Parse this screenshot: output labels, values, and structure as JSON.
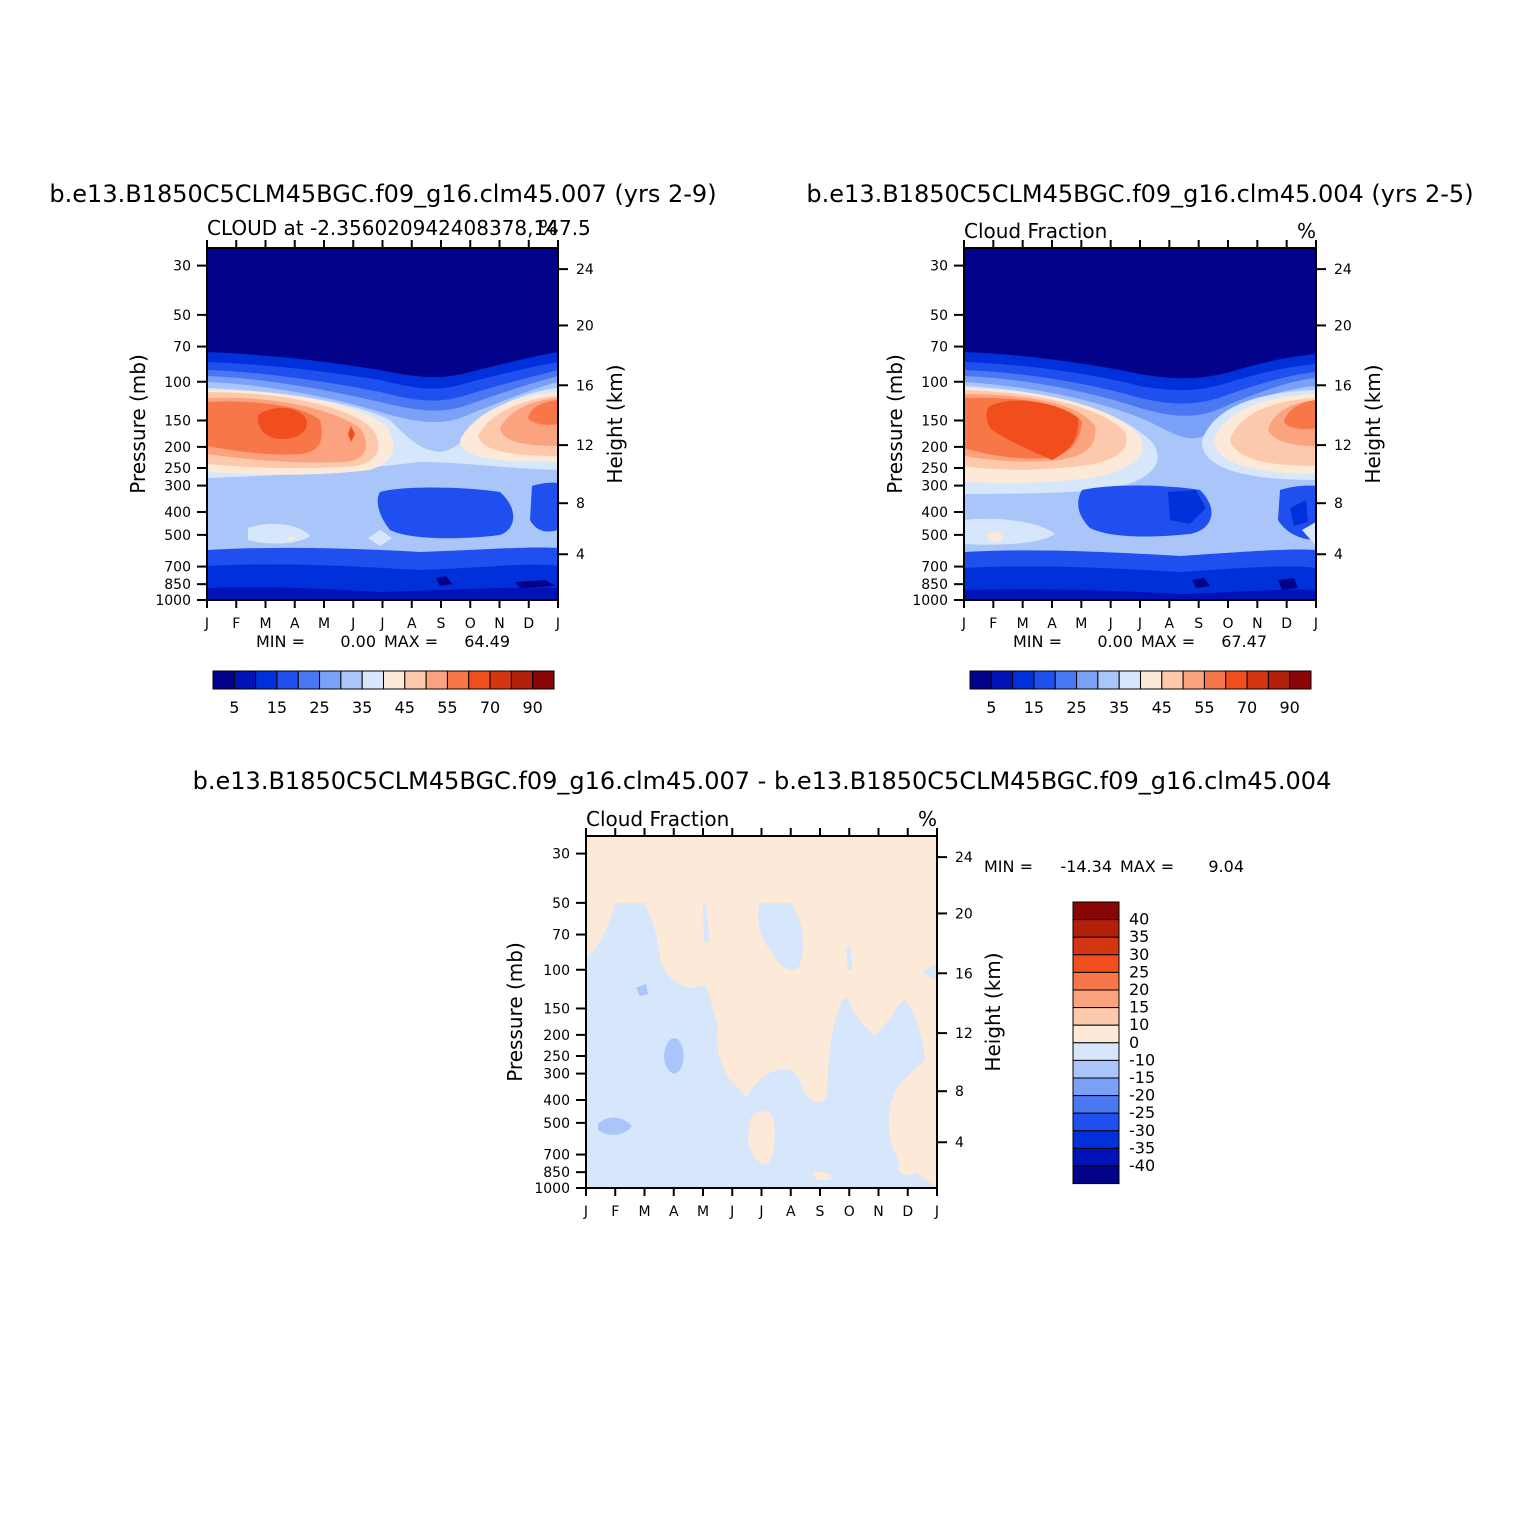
{
  "chart_data": [
    {
      "type": "heatmap",
      "title": "b.e13.B1850C5CLM45BGC.f09_g16.clm45.007 (yrs 2-9)",
      "subtitle_left": "CLOUD at -2.356020942408378,147.5",
      "subtitle_right": "%",
      "xlabel": "",
      "ylabel": "Pressure (mb)",
      "ylabel_right": "Height (km)",
      "x_ticks": [
        "J",
        "F",
        "M",
        "A",
        "M",
        "J",
        "J",
        "A",
        "S",
        "O",
        "N",
        "D",
        "J"
      ],
      "y_ticks": [
        "30",
        "50",
        "70",
        "100",
        "150",
        "200",
        "250",
        "300",
        "400",
        "500",
        "700",
        "850",
        "1000"
      ],
      "y_ticks_right": [
        "24",
        "20",
        "16",
        "12",
        "8",
        "4"
      ],
      "stats": {
        "min_label": "MIN =",
        "min": "0.00",
        "max_label": "MAX =",
        "max": "64.49"
      },
      "colorbar_labels": [
        "5",
        "15",
        "25",
        "35",
        "45",
        "55",
        "70",
        "90"
      ],
      "profile_notes": {
        "upper_tropo_peak_months": [
          "M",
          "A",
          "D"
        ],
        "peak_max": 64.49
      }
    },
    {
      "type": "heatmap",
      "title": "b.e13.B1850C5CLM45BGC.f09_g16.clm45.004 (yrs 2-5)",
      "subtitle_left": "Cloud Fraction",
      "subtitle_right": "%",
      "ylabel": "Pressure (mb)",
      "ylabel_right": "Height (km)",
      "x_ticks": [
        "J",
        "F",
        "M",
        "A",
        "M",
        "J",
        "J",
        "A",
        "S",
        "O",
        "N",
        "D",
        "J"
      ],
      "y_ticks": [
        "30",
        "50",
        "70",
        "100",
        "150",
        "200",
        "250",
        "300",
        "400",
        "500",
        "700",
        "850",
        "1000"
      ],
      "y_ticks_right": [
        "24",
        "20",
        "16",
        "12",
        "8",
        "4"
      ],
      "stats": {
        "min_label": "MIN =",
        "min": "0.00",
        "max_label": "MAX =",
        "max": "67.47"
      },
      "colorbar_labels": [
        "5",
        "15",
        "25",
        "35",
        "45",
        "55",
        "70",
        "90"
      ]
    },
    {
      "type": "heatmap",
      "title": "b.e13.B1850C5CLM45BGC.f09_g16.clm45.007 - b.e13.B1850C5CLM45BGC.f09_g16.clm45.004",
      "subtitle_left": "Cloud Fraction",
      "subtitle_right": "%",
      "ylabel": "Pressure (mb)",
      "ylabel_right": "Height (km)",
      "x_ticks": [
        "J",
        "F",
        "M",
        "A",
        "M",
        "J",
        "J",
        "A",
        "S",
        "O",
        "N",
        "D",
        "J"
      ],
      "y_ticks": [
        "30",
        "50",
        "70",
        "100",
        "150",
        "200",
        "250",
        "300",
        "400",
        "500",
        "700",
        "850",
        "1000"
      ],
      "y_ticks_right": [
        "24",
        "20",
        "16",
        "12",
        "8",
        "4"
      ],
      "stats": {
        "min_label": "MIN =",
        "min": "-14.34",
        "max_label": "MAX =",
        "max": "9.04"
      },
      "colorbar_labels": [
        "40",
        "35",
        "30",
        "25",
        "20",
        "15",
        "10",
        "0",
        "-10",
        "-15",
        "-20",
        "-25",
        "-30",
        "-35",
        "-40"
      ]
    }
  ],
  "colors": {
    "seq": [
      "#02028a",
      "#0012b8",
      "#0030da",
      "#1f50ef",
      "#4a78f3",
      "#7aa0f7",
      "#a9c5f9",
      "#d6e6fb",
      "#fde9d8",
      "#fdc9ad",
      "#fba27f",
      "#f87749",
      "#f04f1d",
      "#d33610",
      "#b3200a",
      "#8a0606"
    ],
    "div": [
      "#8a0606",
      "#b3200a",
      "#d33610",
      "#f04f1d",
      "#f87749",
      "#fba27f",
      "#fdc9ad",
      "#fde9d8",
      "#d6e6fb",
      "#a9c5f9",
      "#7aa0f7",
      "#4a78f3",
      "#1f50ef",
      "#0030da",
      "#0012b8",
      "#02028a"
    ]
  }
}
